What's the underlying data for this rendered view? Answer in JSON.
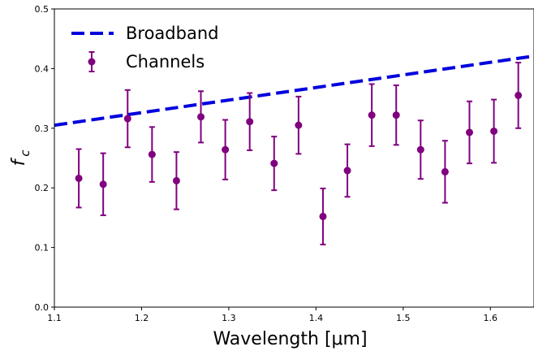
{
  "chart_data": {
    "type": "scatter",
    "xlabel": "Wavelength [μm]",
    "ylabel": "f",
    "ylabel_subscript": "c",
    "xlim": [
      1.1,
      1.65
    ],
    "ylim": [
      0.0,
      0.5
    ],
    "xticks": [
      "1.1",
      "1.2",
      "1.3",
      "1.4",
      "1.5",
      "1.6"
    ],
    "yticks": [
      "0.0",
      "0.1",
      "0.2",
      "0.3",
      "0.4",
      "0.5"
    ],
    "grid": false,
    "legend_position": "top-left",
    "series": [
      {
        "name": "Broadband",
        "kind": "dashed-line",
        "color": "#0000dd",
        "x": [
          1.1,
          1.65
        ],
        "y": [
          0.305,
          0.421
        ]
      },
      {
        "name": "Channels",
        "kind": "errorbar",
        "color": "#800080",
        "points": [
          {
            "x": 1.128,
            "y": 0.216,
            "err": 0.049
          },
          {
            "x": 1.156,
            "y": 0.206,
            "err": 0.052
          },
          {
            "x": 1.184,
            "y": 0.316,
            "err": 0.048
          },
          {
            "x": 1.212,
            "y": 0.256,
            "err": 0.046
          },
          {
            "x": 1.24,
            "y": 0.212,
            "err": 0.048
          },
          {
            "x": 1.268,
            "y": 0.319,
            "err": 0.043
          },
          {
            "x": 1.296,
            "y": 0.264,
            "err": 0.05
          },
          {
            "x": 1.324,
            "y": 0.311,
            "err": 0.048
          },
          {
            "x": 1.352,
            "y": 0.241,
            "err": 0.045
          },
          {
            "x": 1.38,
            "y": 0.305,
            "err": 0.048
          },
          {
            "x": 1.408,
            "y": 0.152,
            "err": 0.047
          },
          {
            "x": 1.436,
            "y": 0.229,
            "err": 0.044
          },
          {
            "x": 1.464,
            "y": 0.322,
            "err": 0.052
          },
          {
            "x": 1.492,
            "y": 0.322,
            "err": 0.05
          },
          {
            "x": 1.52,
            "y": 0.264,
            "err": 0.049
          },
          {
            "x": 1.548,
            "y": 0.227,
            "err": 0.052
          },
          {
            "x": 1.576,
            "y": 0.293,
            "err": 0.052
          },
          {
            "x": 1.604,
            "y": 0.295,
            "err": 0.053
          },
          {
            "x": 1.632,
            "y": 0.355,
            "err": 0.055
          }
        ]
      }
    ]
  }
}
